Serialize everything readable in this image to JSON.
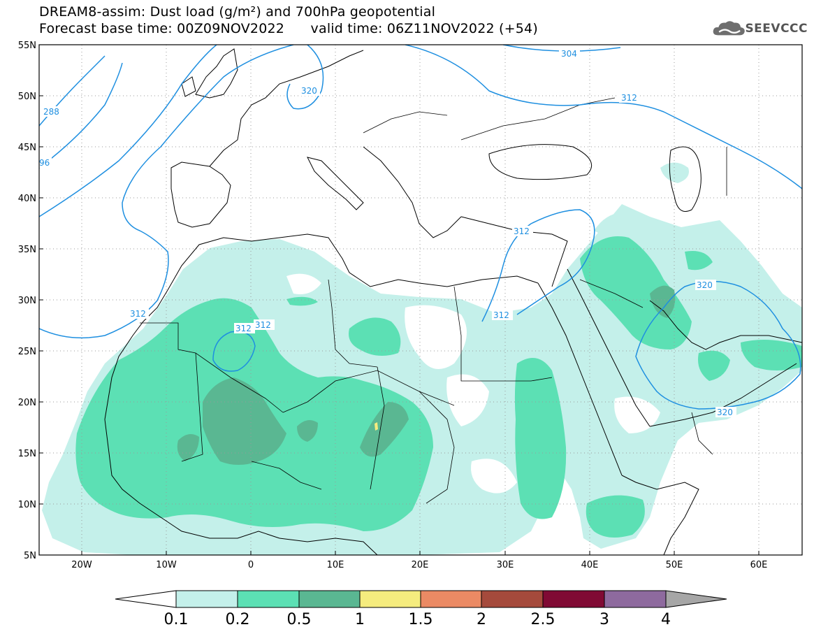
{
  "header": {
    "title_line_1": "DREAM8-assim: Dust load (g/m²) and 700hPa geopotential",
    "title_line_2": "Forecast base time: 00Z09NOV2022      valid time: 06Z11NOV2022 (+54)"
  },
  "logo": {
    "text": "SEEVCCC",
    "icon": "cloud-logo-icon"
  },
  "map": {
    "lon_range": [
      -25,
      65
    ],
    "lat_range": [
      5,
      55
    ],
    "lat_labels": [
      "55N",
      "50N",
      "45N",
      "40N",
      "35N",
      "30N",
      "25N",
      "20N",
      "15N",
      "10N",
      "5N"
    ],
    "lon_labels": [
      "20W",
      "10W",
      "0",
      "10E",
      "20E",
      "30E",
      "40E",
      "50E",
      "60E"
    ],
    "contour_labels": [
      "304",
      "312",
      "320",
      "288",
      "96",
      "312",
      "312",
      "312",
      "312",
      "312",
      "320",
      "320"
    ]
  },
  "colorbar": {
    "ticks": [
      "0.1",
      "0.2",
      "0.5",
      "1",
      "1.5",
      "2",
      "2.5",
      "3",
      "4"
    ],
    "colors": [
      "#c4f0ea",
      "#5ce0b4",
      "#5ab792",
      "#f5ec7e",
      "#eb8a64",
      "#a54a3c",
      "#800a34",
      "#8e6a9e",
      "#a6a6a6"
    ]
  },
  "colors": {
    "dust_light": "#c4f0ea",
    "dust_mid": "#5ce0b4",
    "dust_dark": "#5ab792",
    "dust_yellow": "#f5ec7e",
    "geopotential_contour": "#1e8fe0"
  }
}
